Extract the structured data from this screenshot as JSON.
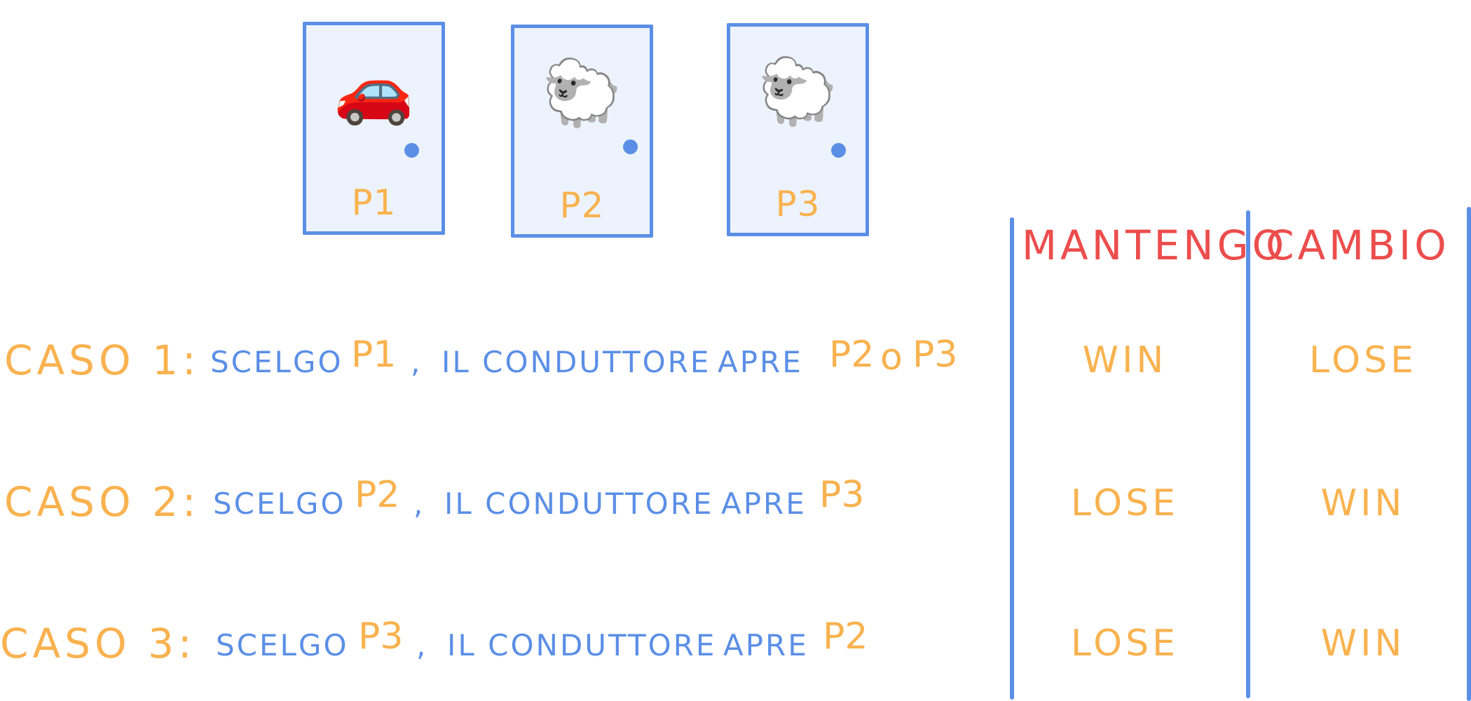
{
  "doors": [
    {
      "emoji": "🚗",
      "label": "P1"
    },
    {
      "emoji": "🐑",
      "label": "P2"
    },
    {
      "emoji": "🐑",
      "label": "P3"
    }
  ],
  "table": {
    "headers": [
      "MANTENGO",
      "CAMBIO"
    ]
  },
  "rows": [
    {
      "caso": "CASO 1:",
      "scelgo": "SCELGO",
      "pick": "P1",
      "comma": ",",
      "conduttore": "IL CONDUTTORE",
      "apre": "APRE",
      "open": "P2",
      "o": "o",
      "open2": "P3",
      "mantengo": "WIN",
      "cambio": "LOSE"
    },
    {
      "caso": "CASO 2:",
      "scelgo": "SCELGO",
      "pick": "P2",
      "comma": ",",
      "conduttore": "IL CONDUTTORE",
      "apre": "APRE",
      "open": "P3",
      "mantengo": "LOSE",
      "cambio": "WIN"
    },
    {
      "caso": "CASO 3:",
      "scelgo": "SCELGO",
      "pick": "P3",
      "comma": ",",
      "conduttore": "IL CONDUTTORE",
      "apre": "APRE",
      "open": "P2",
      "mantengo": "LOSE",
      "cambio": "WIN"
    }
  ]
}
